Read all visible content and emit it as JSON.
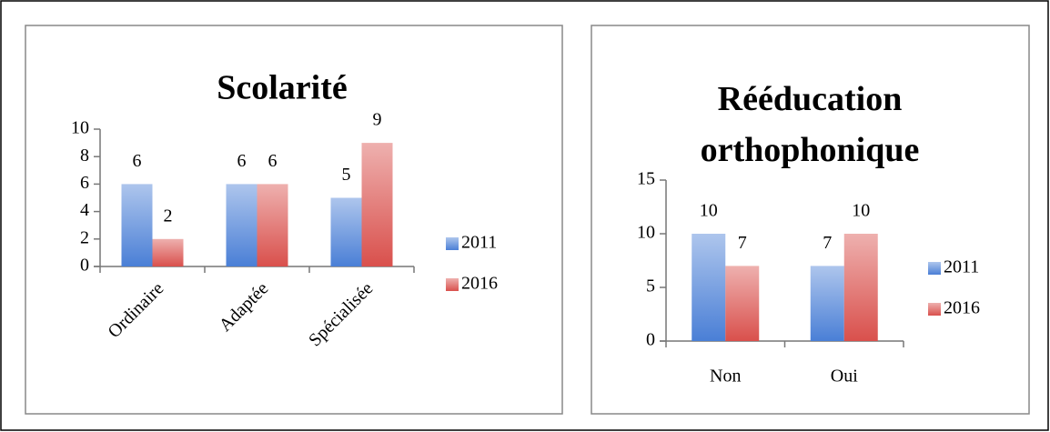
{
  "chart_data": [
    {
      "type": "bar",
      "title": "Scolarité",
      "categories": [
        "Ordinaire",
        "Adaptée",
        "Spécialisée"
      ],
      "series": [
        {
          "name": "2011",
          "color": "#4a7fd6",
          "values": [
            6,
            6,
            5
          ]
        },
        {
          "name": "2016",
          "color": "#d9504c",
          "values": [
            2,
            6,
            9
          ]
        }
      ],
      "ylim": [
        0,
        10
      ],
      "yticks": [
        0,
        2,
        4,
        6,
        8,
        10
      ],
      "grid": false,
      "legend": "right",
      "rotate_labels": true
    },
    {
      "type": "bar",
      "title": "Rééducation orthophonique",
      "categories": [
        "Non",
        "Oui"
      ],
      "series": [
        {
          "name": "2011",
          "color": "#4a7fd6",
          "values": [
            10,
            7
          ]
        },
        {
          "name": "2016",
          "color": "#d9504c",
          "values": [
            7,
            10
          ]
        }
      ],
      "ylim": [
        0,
        15
      ],
      "yticks": [
        0,
        5,
        10,
        15
      ],
      "grid": false,
      "legend": "right",
      "rotate_labels": false
    }
  ]
}
